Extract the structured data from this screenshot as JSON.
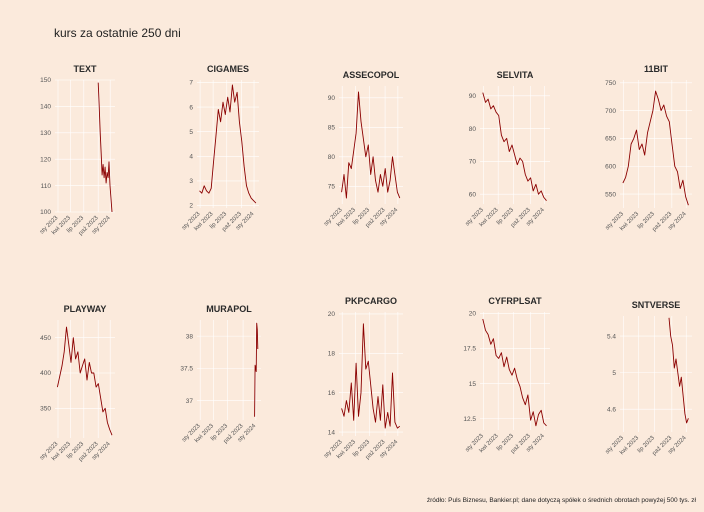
{
  "title": "kurs za ostatnie 250 dni",
  "caption": "źródło: Puls Biznesu, Bankier.pl; dane dotyczą spółek o średnich obrotach powyżej 500 tys. zł",
  "colors": {
    "background": "#fbeadc",
    "line": "#8b0000",
    "grid": "#ffffff"
  },
  "chart_data": [
    {
      "type": "line",
      "title": "TEXT",
      "x_ticks": [
        "sty 2023",
        "kwi 2023",
        "lip 2023",
        "paź 2023",
        "sty 2024"
      ],
      "y_ticks": [
        100,
        110,
        120,
        130,
        140,
        150
      ],
      "ylim": [
        100,
        150
      ],
      "series": [
        {
          "values": [
            149,
            140,
            130,
            122,
            114,
            118,
            113,
            117,
            111,
            115,
            113,
            119,
            110,
            105,
            100
          ]
        }
      ]
    },
    {
      "type": "line",
      "title": "CIGAMES",
      "x_ticks": [
        "sty 2023",
        "kwi 2023",
        "lip 2023",
        "paź 2023",
        "sty 2024"
      ],
      "y_ticks": [
        2,
        3,
        4,
        5,
        6,
        7
      ],
      "ylim": [
        1.9,
        7.1
      ],
      "series": [
        {
          "values": [
            2.6,
            2.5,
            2.8,
            2.6,
            2.5,
            2.7,
            3.8,
            4.8,
            5.9,
            5.4,
            6.2,
            5.7,
            6.4,
            5.8,
            6.9,
            6.2,
            6.6,
            5.4,
            4.6,
            3.6,
            2.8,
            2.5,
            2.3,
            2.2,
            2.1
          ]
        }
      ]
    },
    {
      "type": "line",
      "title": "ASSECOPOL",
      "x_ticks": [
        "sty 2023",
        "kwi 2023",
        "lip 2023",
        "paź 2023",
        "sty 2024"
      ],
      "y_ticks": [
        75,
        80,
        85,
        90
      ],
      "ylim": [
        72,
        92
      ],
      "series": [
        {
          "values": [
            74,
            77,
            73,
            79,
            78,
            81,
            84,
            91,
            86,
            83,
            80,
            82,
            77,
            80,
            76,
            74,
            77,
            75,
            78,
            74,
            76,
            80,
            77,
            74,
            73
          ]
        }
      ]
    },
    {
      "type": "line",
      "title": "SELVITA",
      "x_ticks": [
        "sty 2023",
        "kwi 2023",
        "lip 2023",
        "paź 2023",
        "sty 2024"
      ],
      "y_ticks": [
        60,
        70,
        80,
        90
      ],
      "ylim": [
        57,
        93
      ],
      "series": [
        {
          "values": [
            91,
            88,
            89,
            86,
            87,
            85,
            84,
            78,
            76,
            77,
            73,
            75,
            72,
            69,
            71,
            70,
            66,
            64,
            65,
            61,
            63,
            60,
            61,
            59,
            58
          ]
        }
      ]
    },
    {
      "type": "line",
      "title": "11BIT",
      "x_ticks": [
        "sty 2023",
        "kwi 2023",
        "lip 2023",
        "paź 2023",
        "sty 2024"
      ],
      "y_ticks": [
        550,
        600,
        650,
        700,
        750
      ],
      "ylim": [
        525,
        755
      ],
      "series": [
        {
          "values": [
            570,
            580,
            600,
            640,
            650,
            665,
            630,
            640,
            620,
            660,
            680,
            700,
            735,
            720,
            700,
            710,
            690,
            680,
            640,
            600,
            590,
            560,
            575,
            545,
            530
          ]
        }
      ]
    },
    {
      "type": "line",
      "title": "PLAYWAY",
      "x_ticks": [
        "sty 2023",
        "kwi 2023",
        "lip 2023",
        "paź 2023",
        "sty 2024"
      ],
      "y_ticks": [
        350,
        400,
        450
      ],
      "ylim": [
        308,
        475
      ],
      "series": [
        {
          "values": [
            380,
            395,
            410,
            430,
            465,
            440,
            415,
            450,
            420,
            430,
            400,
            410,
            420,
            390,
            415,
            400,
            400,
            380,
            385,
            365,
            345,
            350,
            330,
            320,
            312
          ]
        }
      ]
    },
    {
      "type": "line",
      "title": "MURAPOL",
      "x_ticks": [
        "sty 2023",
        "kwi 2023",
        "lip 2023",
        "paź 2023",
        "sty 2024"
      ],
      "y_ticks": [
        37.0,
        37.5,
        38.0
      ],
      "ylim": [
        36.7,
        38.25
      ],
      "series": [
        {
          "values": [
            36.75,
            37.55,
            37.5,
            37.45,
            38.2,
            38.1,
            37.8
          ]
        }
      ]
    },
    {
      "type": "line",
      "title": "PKPCARGO",
      "x_ticks": [
        "sty 2023",
        "kwi 2023",
        "lip 2023",
        "paź 2023",
        "sty 2024"
      ],
      "y_ticks": [
        14,
        16,
        18,
        20
      ],
      "ylim": [
        13.8,
        20.1
      ],
      "series": [
        {
          "values": [
            15.2,
            14.8,
            15.6,
            15.0,
            16.5,
            14.6,
            17.5,
            14.8,
            16.0,
            19.5,
            17.2,
            17.6,
            16.4,
            15.2,
            14.5,
            15.8,
            14.6,
            16.4,
            14.2,
            15.0,
            14.3,
            17.0,
            14.5,
            14.2,
            14.3
          ]
        }
      ]
    },
    {
      "type": "line",
      "title": "CYFRPLSAT",
      "x_ticks": [
        "sty 2023",
        "kwi 2023",
        "lip 2023",
        "paź 2023",
        "sty 2024"
      ],
      "y_ticks": [
        12.5,
        15.0,
        17.5,
        20.0
      ],
      "ylim": [
        11.7,
        20.1
      ],
      "series": [
        {
          "values": [
            19.6,
            18.8,
            18.5,
            17.8,
            18.2,
            17.0,
            16.8,
            17.2,
            16.2,
            16.9,
            16.0,
            15.6,
            16.1,
            15.3,
            14.8,
            14.0,
            13.5,
            14.2,
            12.4,
            13.0,
            12.0,
            12.8,
            13.1,
            12.2,
            12.0
          ]
        }
      ]
    },
    {
      "type": "line",
      "title": "SNTVERSE",
      "x_ticks": [
        "sty 2023",
        "kwi 2023",
        "lip 2023",
        "paź 2023",
        "sty 2024"
      ],
      "y_ticks": [
        4.6,
        5.0,
        5.4
      ],
      "ylim": [
        4.35,
        5.62
      ],
      "series": [
        {
          "values": [
            5.6,
            5.4,
            5.3,
            5.05,
            5.15,
            5.0,
            4.85,
            4.95,
            4.75,
            4.55,
            4.45,
            4.5
          ]
        }
      ]
    }
  ]
}
